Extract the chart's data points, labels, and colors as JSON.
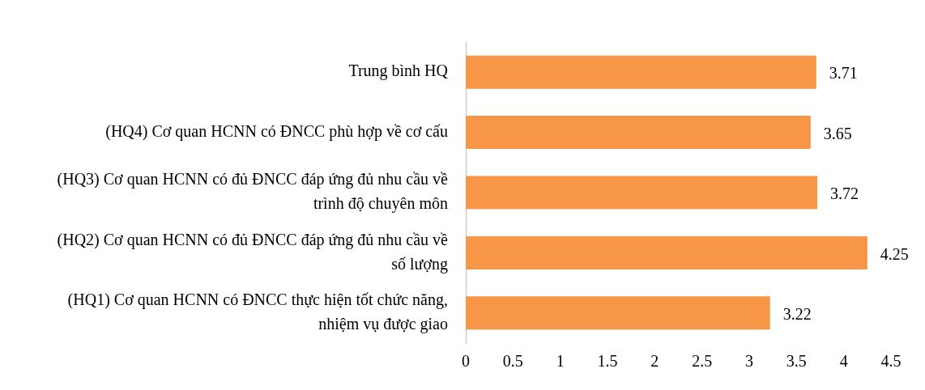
{
  "chart_data": {
    "type": "bar",
    "orientation": "horizontal",
    "categories": [
      "Trung bình HQ",
      "(HQ4) Cơ quan HCNN có ĐNCC phù hợp về cơ cấu",
      "(HQ3) Cơ quan HCNN có đủ ĐNCC đáp ứng đủ nhu cầu về trình độ chuyên môn",
      "(HQ2) Cơ quan HCNN có đủ ĐNCC đáp ứng đủ nhu cầu về số lượng",
      "(HQ1) Cơ quan HCNN có ĐNCC thực hiện tốt chức năng, nhiệm vụ được giao"
    ],
    "values": [
      3.71,
      3.65,
      3.72,
      4.25,
      3.22
    ],
    "color": "#f79646",
    "xlim": [
      0,
      4.5
    ],
    "xticks": [
      0,
      0.5,
      1,
      1.5,
      2,
      2.5,
      3,
      3.5,
      4,
      4.5
    ],
    "grid": false,
    "legend": false,
    "data_labels": true
  }
}
